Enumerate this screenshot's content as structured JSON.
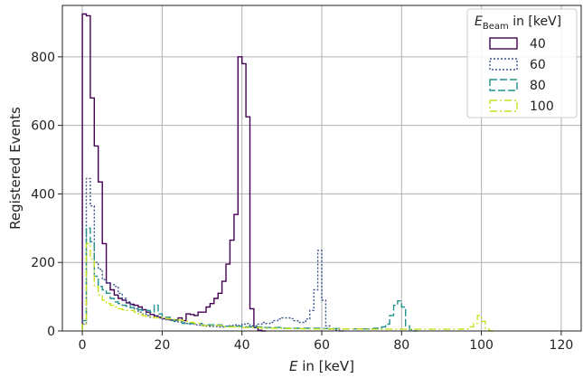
{
  "chart_data": {
    "type": "line",
    "step": true,
    "xlabel_var": "E",
    "xlabel_rest": " in [keV]",
    "ylabel": "Registered Events",
    "xlim": [
      -5,
      125
    ],
    "ylim": [
      0,
      950
    ],
    "xticks": [
      0,
      20,
      40,
      60,
      80,
      100,
      120
    ],
    "yticks": [
      0,
      200,
      400,
      600,
      800
    ],
    "grid": true,
    "legend": {
      "placement": "top-right",
      "title_prefix": "E",
      "title_sub": "Beam",
      "title_suffix": " in [keV]"
    },
    "bin_width": 1,
    "series": [
      {
        "name": "40",
        "color": "#440154",
        "dash": "",
        "x": [
          0,
          1,
          2,
          3,
          4,
          5,
          6,
          7,
          8,
          9,
          10,
          11,
          12,
          13,
          14,
          15,
          16,
          17,
          18,
          19,
          20,
          21,
          22,
          23,
          24,
          25,
          26,
          27,
          28,
          29,
          30,
          31,
          32,
          33,
          34,
          35,
          36,
          37,
          38,
          39,
          40,
          41,
          42,
          43,
          44,
          45
        ],
        "values": [
          925,
          920,
          680,
          540,
          435,
          255,
          140,
          120,
          105,
          95,
          90,
          82,
          78,
          75,
          70,
          62,
          55,
          48,
          44,
          40,
          36,
          34,
          32,
          32,
          38,
          30,
          50,
          48,
          45,
          55,
          55,
          70,
          80,
          95,
          110,
          145,
          195,
          265,
          340,
          800,
          780,
          625,
          65,
          10,
          2,
          0
        ]
      },
      {
        "name": "60",
        "color": "#3b528b",
        "dash": "2,2",
        "x": [
          0,
          1,
          2,
          3,
          4,
          5,
          6,
          7,
          8,
          9,
          10,
          11,
          12,
          13,
          14,
          15,
          16,
          17,
          18,
          19,
          20,
          21,
          22,
          23,
          24,
          25,
          26,
          27,
          28,
          29,
          30,
          31,
          32,
          33,
          34,
          35,
          36,
          37,
          38,
          39,
          40,
          41,
          42,
          43,
          44,
          45,
          46,
          47,
          48,
          49,
          50,
          51,
          52,
          53,
          54,
          55,
          56,
          57,
          58,
          59,
          60,
          61,
          62,
          63,
          64,
          65
        ],
        "values": [
          20,
          445,
          365,
          200,
          180,
          150,
          140,
          135,
          130,
          110,
          95,
          85,
          75,
          65,
          55,
          50,
          45,
          40,
          40,
          38,
          35,
          33,
          32,
          28,
          26,
          24,
          22,
          20,
          18,
          17,
          15,
          14,
          13,
          13,
          12,
          12,
          14,
          16,
          18,
          16,
          20,
          22,
          15,
          15,
          20,
          25,
          22,
          25,
          30,
          35,
          38,
          38,
          36,
          30,
          25,
          25,
          35,
          60,
          120,
          235,
          90,
          15,
          5,
          3,
          2,
          0
        ]
      },
      {
        "name": "80",
        "color": "#21918c",
        "dash": "8,3",
        "x": [
          0,
          1,
          2,
          3,
          4,
          5,
          6,
          7,
          8,
          9,
          10,
          11,
          12,
          13,
          14,
          15,
          16,
          17,
          18,
          19,
          20,
          22,
          25,
          30,
          35,
          40,
          45,
          50,
          55,
          60,
          65,
          70,
          73,
          75,
          76,
          77,
          78,
          79,
          80,
          81,
          82,
          83
        ],
        "values": [
          30,
          300,
          260,
          160,
          130,
          120,
          110,
          95,
          85,
          80,
          75,
          72,
          68,
          65,
          62,
          60,
          60,
          55,
          75,
          50,
          40,
          30,
          22,
          18,
          14,
          12,
          10,
          8,
          8,
          7,
          6,
          6,
          8,
          12,
          20,
          45,
          75,
          88,
          70,
          15,
          4,
          0
        ]
      },
      {
        "name": "100",
        "color": "#c8e020",
        "dash": "8,3,2,3",
        "x": [
          0,
          1,
          2,
          3,
          4,
          5,
          6,
          7,
          8,
          9,
          10,
          11,
          12,
          13,
          14,
          15,
          16,
          17,
          18,
          19,
          20,
          21,
          22,
          23,
          24,
          25,
          26,
          27,
          28,
          30,
          35,
          40,
          45,
          50,
          55,
          60,
          65,
          70,
          75,
          80,
          85,
          90,
          95,
          97,
          98,
          99,
          100,
          101,
          102
        ],
        "values": [
          20,
          255,
          210,
          130,
          105,
          90,
          80,
          75,
          70,
          65,
          62,
          60,
          60,
          55,
          50,
          45,
          42,
          40,
          38,
          40,
          38,
          36,
          35,
          33,
          32,
          30,
          28,
          25,
          22,
          16,
          12,
          10,
          8,
          7,
          6,
          6,
          6,
          5,
          5,
          5,
          5,
          5,
          6,
          12,
          22,
          45,
          28,
          5,
          0
        ]
      }
    ]
  }
}
